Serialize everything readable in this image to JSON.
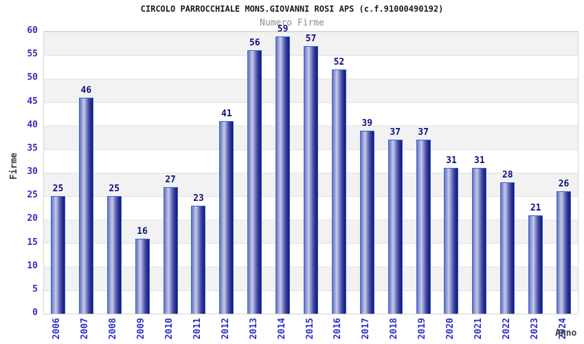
{
  "chart_data": {
    "type": "bar",
    "title": "CIRCOLO PARROCCHIALE MONS.GIOVANNI ROSI APS (c.f.91000490192)",
    "subtitle": "Numero Firme",
    "xlabel": "Anno",
    "ylabel": "Firme",
    "categories": [
      "2006",
      "2007",
      "2008",
      "2009",
      "2010",
      "2011",
      "2012",
      "2013",
      "2014",
      "2015",
      "2016",
      "2017",
      "2018",
      "2019",
      "2020",
      "2021",
      "2022",
      "2023",
      "2024"
    ],
    "values": [
      25,
      46,
      25,
      16,
      27,
      23,
      41,
      56,
      59,
      57,
      52,
      39,
      37,
      37,
      31,
      31,
      28,
      21,
      26
    ],
    "ylim": [
      0,
      60
    ],
    "y_tick_step": 5,
    "grid": true,
    "legend_position": "none",
    "colors": {
      "title": "#1a1a1a",
      "subtitle": "#8c8c8c",
      "axis_title": "#3c3c3c",
      "tick_label": "#2d2dcb",
      "value_label": "#10107e",
      "bar_mid_light": "#c6cce9",
      "bar_edge_dark": "#16186f",
      "bar_border": "#2f62e0",
      "band_gray": "#f2f2f2",
      "grid_line": "#e0e0e0",
      "plot_border": "#d4d4d4"
    }
  }
}
